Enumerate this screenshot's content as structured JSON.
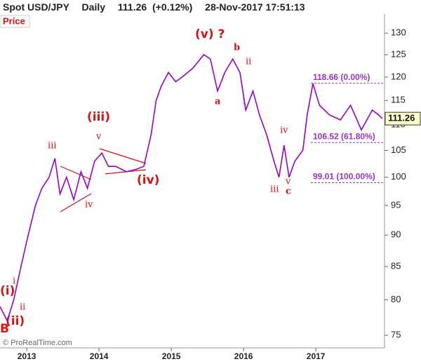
{
  "chart_data": {
    "type": "line",
    "title": "Spot USD/JPY",
    "timeframe": "Daily",
    "last_price": 111.26,
    "change": "(+0.12%)",
    "timestamp": "28-Nov-2017 17:51:13",
    "y_label": "Price",
    "source": "© ProRealTime.com",
    "color": "#9900cc",
    "log_scale": true,
    "x": [
      2012.63,
      2012.73,
      2012.82,
      2012.92,
      2013.02,
      2013.12,
      2013.21,
      2013.31,
      2013.39,
      2013.46,
      2013.55,
      2013.65,
      2013.75,
      2013.84,
      2013.94,
      2014.04,
      2014.13,
      2014.23,
      2014.38,
      2014.52,
      2014.62,
      2014.72,
      2014.79,
      2014.86,
      2014.96,
      2015.06,
      2015.15,
      2015.3,
      2015.45,
      2015.54,
      2015.64,
      2015.74,
      2015.85,
      2015.95,
      2016.03,
      2016.13,
      2016.22,
      2016.32,
      2016.42,
      2016.49,
      2016.56,
      2016.63,
      2016.71,
      2016.82,
      2016.88,
      2016.96,
      2017.05,
      2017.19,
      2017.34,
      2017.48,
      2017.63,
      2017.78,
      2017.87,
      2017.92
    ],
    "values": [
      79,
      77,
      80,
      85,
      90,
      95,
      98,
      100,
      103.5,
      97,
      100,
      96,
      101,
      98,
      103,
      104.5,
      102,
      102,
      101,
      101.5,
      102,
      108,
      115,
      118,
      121,
      119,
      120,
      122,
      125,
      124,
      117,
      121,
      124,
      121,
      113,
      117,
      112,
      108,
      103,
      100,
      106,
      100,
      103,
      105,
      112,
      118.6,
      114,
      112,
      111,
      114,
      109,
      113,
      112,
      111.26
    ],
    "xlim": [
      2012.63,
      2017.95
    ],
    "xticks": [
      2013,
      2014,
      2015,
      2016,
      2017
    ],
    "ylim": [
      73.3,
      134.6
    ],
    "yticks": [
      75,
      80,
      85,
      90,
      95,
      100,
      105,
      110,
      115,
      120,
      125,
      130
    ],
    "levels": [
      {
        "value": 118.66,
        "label": "118.66 (0.00%)"
      },
      {
        "value": 106.52,
        "label": "106.52 (61.80%)"
      },
      {
        "value": 99.01,
        "label": "99.01 (100.00%)"
      }
    ],
    "annotations": [
      "(v) ?",
      "b",
      "ii",
      "a",
      "i",
      "(iii)",
      "v",
      "iii",
      "iv",
      "(iv)",
      "iv",
      "iii",
      "v",
      "c",
      "(i)",
      "i",
      "ii",
      "(ii)",
      "B"
    ]
  }
}
